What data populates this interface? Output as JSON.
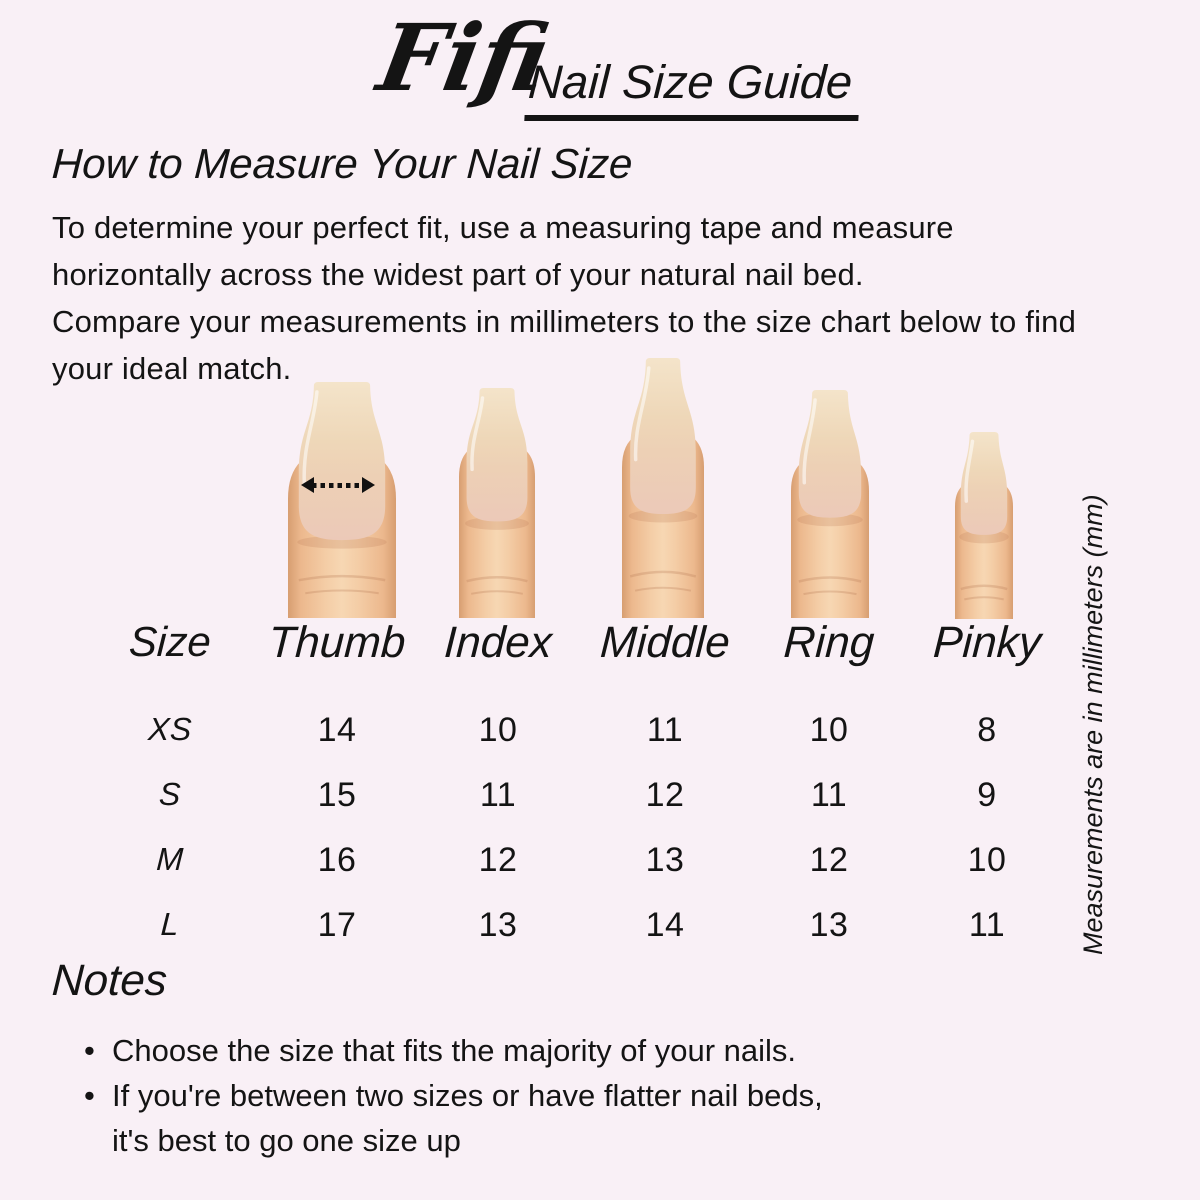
{
  "page": {
    "background": "#f9f0f6",
    "ink": "#141414"
  },
  "header": {
    "brand": "Fifi",
    "title": "Nail Size Guide"
  },
  "how_to": {
    "heading": "How to Measure Your Nail Size",
    "lines": [
      "To determine your perfect fit, use a measuring tape and measure",
      "horizontally across the widest part of your natural nail bed.",
      "Compare your measurements in millimeters to the size chart below to find",
      "your ideal match."
    ]
  },
  "fingers": {
    "labels": [
      "Thumb",
      "Index",
      "Middle",
      "Ring",
      "Pinky"
    ],
    "measure_arrow_icon": "dotted-double-headed-arrow"
  },
  "size_chart": {
    "size_header": "Size",
    "rows": [
      {
        "size": "XS",
        "values": [
          "14",
          "10",
          "11",
          "10",
          "8"
        ]
      },
      {
        "size": "S",
        "values": [
          "15",
          "11",
          "12",
          "11",
          "9"
        ]
      },
      {
        "size": "M",
        "values": [
          "16",
          "12",
          "13",
          "12",
          "10"
        ]
      },
      {
        "size": "L",
        "values": [
          "17",
          "13",
          "14",
          "13",
          "11"
        ]
      }
    ],
    "units_note": "Measurements are in millimeters (mm)"
  },
  "notes": {
    "heading": "Notes",
    "bullet_glyph": "•",
    "items": [
      {
        "lines": [
          "Choose the size that fits the majority of your nails."
        ]
      },
      {
        "lines": [
          "If you're between two sizes or have flatter nail beds,",
          "it's best to go one size up"
        ]
      }
    ]
  },
  "skin": {
    "edge": "#d79e71",
    "mid_edge": "#ecb88d",
    "mid": "#f4cda6",
    "light": "#f7d7b3",
    "nail_tip_top": "#f4e4ca",
    "nail_mid": "#eed7b8",
    "nail_low": "#edd0b5",
    "nail_bed": "#ecc9b8",
    "crease": "rgba(187,125,90,0.30)",
    "shadow": "rgba(193,128,90,0.25)",
    "shine": "rgba(255,255,255,0.55)"
  }
}
